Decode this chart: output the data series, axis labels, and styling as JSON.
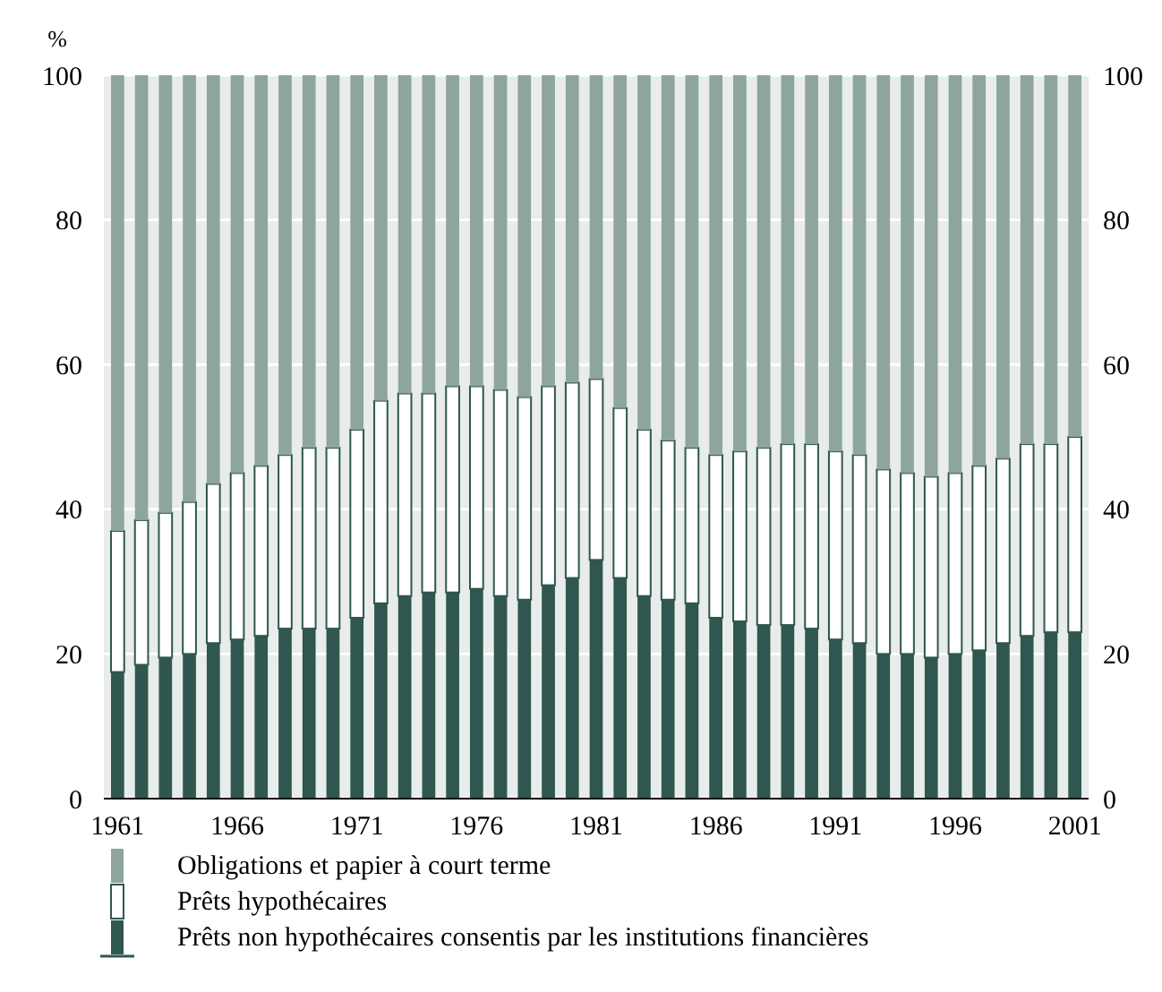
{
  "chart_data": {
    "type": "bar",
    "stacked": true,
    "ylabel": "%",
    "categories": [
      "1961",
      null,
      null,
      null,
      null,
      "1966",
      null,
      null,
      null,
      null,
      "1971",
      null,
      null,
      null,
      null,
      "1976",
      null,
      null,
      null,
      null,
      "1981",
      null,
      null,
      null,
      null,
      "1986",
      null,
      null,
      null,
      null,
      "1991",
      null,
      null,
      null,
      null,
      "1996",
      null,
      null,
      null,
      null,
      "2001"
    ],
    "series": [
      {
        "name": "Prêts non hypothécaires consentis par les institutions financières",
        "color": "#2f574f",
        "values": [
          17.5,
          18.5,
          19.5,
          20,
          21.5,
          22,
          22.5,
          23.5,
          23.5,
          23.5,
          25,
          27,
          28,
          28.5,
          28.5,
          29,
          28,
          27.5,
          29.5,
          30.5,
          33,
          30.5,
          28,
          27.5,
          27,
          25,
          24.5,
          24,
          24,
          23.5,
          22,
          21.5,
          20,
          20,
          19.5,
          20,
          20.5,
          21.5,
          22.5,
          23,
          23
        ]
      },
      {
        "name": "Prêts hypothécaires",
        "color": "#ffffff",
        "values": [
          19.5,
          20,
          20,
          21,
          22,
          23,
          23.5,
          24,
          25,
          25,
          26,
          28,
          28,
          27.5,
          28.5,
          28,
          28.5,
          28,
          27.5,
          27,
          25,
          23.5,
          23,
          22,
          21.5,
          22.5,
          23.5,
          24.5,
          25,
          25.5,
          26,
          26,
          25.5,
          25,
          25,
          25,
          25.5,
          25.5,
          26.5,
          26,
          27
        ]
      },
      {
        "name": "Obligations et papier à court terme",
        "color": "#8da59d",
        "values": [
          63,
          61.5,
          60.5,
          59,
          56.5,
          55,
          54,
          52.5,
          51.5,
          51.5,
          49,
          45,
          44,
          44,
          43,
          43,
          43.5,
          44.5,
          43,
          42.5,
          42,
          46,
          49,
          50.5,
          51.5,
          52.5,
          52,
          51.5,
          51,
          51,
          52,
          52.5,
          54.5,
          55,
          55.5,
          55,
          54,
          53,
          51,
          51,
          50
        ]
      }
    ],
    "ylim": [
      0,
      100
    ],
    "yticks": [
      0,
      20,
      40,
      60,
      80,
      100
    ],
    "y2lim": [
      0,
      100
    ],
    "y2ticks": [
      0,
      20,
      40,
      60,
      80,
      100
    ],
    "grid": "y",
    "legend": "bottom"
  }
}
